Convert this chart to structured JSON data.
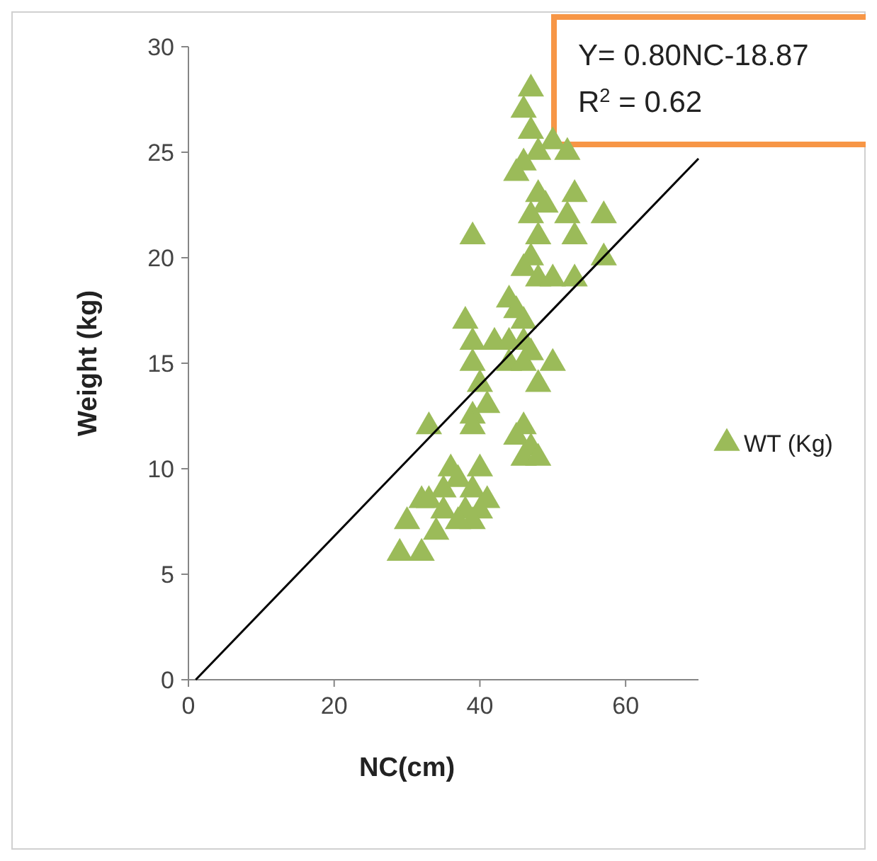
{
  "chart_data": {
    "type": "scatter",
    "xlabel": "NC(cm)",
    "ylabel": "Weight (kg)",
    "xlim": [
      0,
      70
    ],
    "xticks": [
      0,
      20,
      40,
      60
    ],
    "ylim": [
      0,
      30
    ],
    "yticks": [
      0,
      5,
      10,
      15,
      20,
      25,
      30
    ],
    "grid": false,
    "legend": "right",
    "marker": "triangle",
    "annotations": [
      "Y= 0.80NC-18.87",
      "R$^{2}$ = 0.62"
    ],
    "series": [
      {
        "name": "WT (Kg)",
        "color": "#9bbb59",
        "x": [
          47,
          46,
          47,
          48,
          46,
          45,
          50,
          52,
          48,
          49,
          52,
          53,
          53,
          57,
          57,
          53,
          39,
          47,
          48,
          47,
          46,
          48,
          50,
          44,
          45,
          46,
          38,
          39,
          42,
          44,
          46,
          47,
          50,
          39,
          44,
          46,
          40,
          48,
          41,
          39,
          33,
          39,
          46,
          45,
          47,
          46,
          48,
          36,
          40,
          35,
          37,
          39,
          41,
          32,
          33,
          35,
          38,
          40,
          30,
          34,
          39,
          29,
          32,
          37
        ],
        "values": [
          28,
          27,
          26,
          25,
          24.5,
          24,
          25.5,
          25,
          23,
          22.5,
          22,
          23,
          21,
          22,
          20,
          19,
          21,
          22,
          21,
          20,
          19.5,
          19,
          19,
          18,
          17.5,
          17,
          17,
          16,
          16,
          16,
          16,
          15.5,
          15,
          15,
          15,
          15,
          14,
          14,
          13,
          12.5,
          12,
          12,
          12,
          11.5,
          11,
          10.5,
          10.5,
          10,
          10,
          9,
          9.5,
          9,
          8.5,
          8.5,
          8.5,
          8,
          8,
          8,
          7.5,
          7,
          7.5,
          6,
          6,
          7.5
        ]
      },
      {
        "type": "line",
        "color": "#000000",
        "line_style": "solid",
        "marker": "none",
        "x": [
          1,
          70
        ],
        "values": [
          0,
          24.7
        ]
      }
    ]
  }
}
